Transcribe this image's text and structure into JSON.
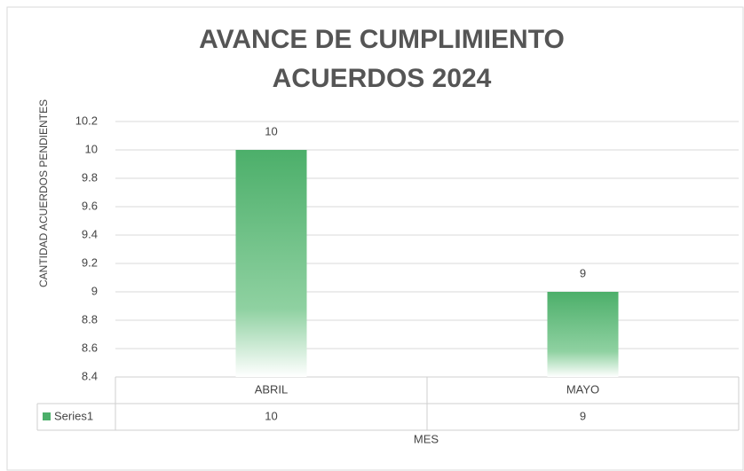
{
  "chart_data": {
    "type": "bar",
    "title": [
      "AVANCE DE CUMPLIMIENTO",
      "ACUERDOS  2024"
    ],
    "y_label": "CANTIDAD ACUERDOS PENDIENTES",
    "x_label": "MES",
    "categories": [
      "ABRIL",
      "MAYO"
    ],
    "series": [
      {
        "name": "Series1",
        "color": "#4caf6a",
        "values": [
          10,
          9
        ]
      }
    ],
    "ylim": [
      8.4,
      10.2
    ],
    "yticks": [
      8.4,
      8.6,
      8.8,
      9,
      9.2,
      9.4,
      9.6,
      9.8,
      10,
      10.2
    ],
    "grid": true,
    "data_table": true
  }
}
